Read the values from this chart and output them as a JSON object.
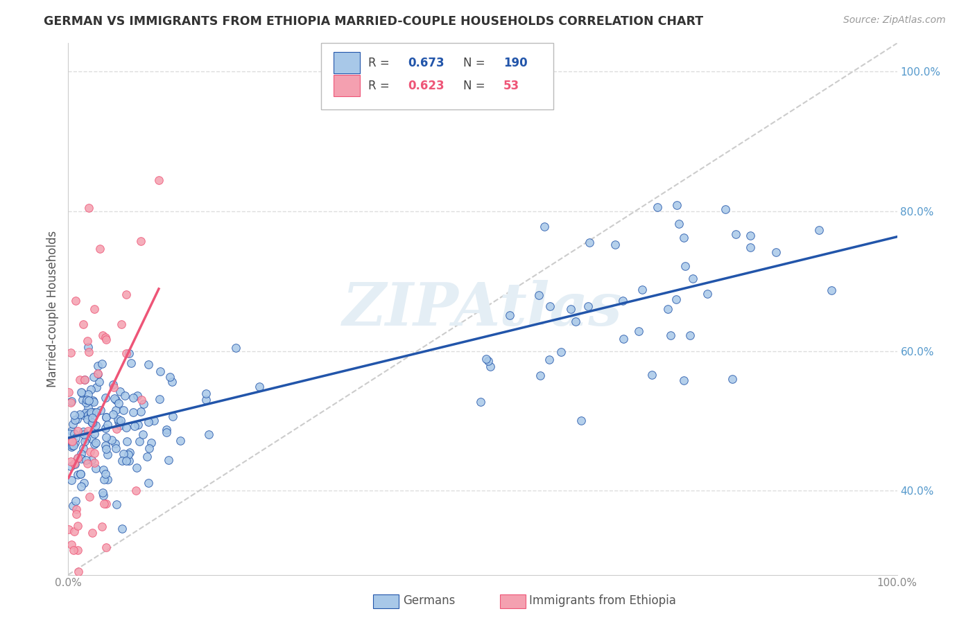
{
  "title": "GERMAN VS IMMIGRANTS FROM ETHIOPIA MARRIED-COUPLE HOUSEHOLDS CORRELATION CHART",
  "source": "Source: ZipAtlas.com",
  "ylabel": "Married-couple Households",
  "xlabel": "",
  "xlim": [
    0,
    1
  ],
  "ylim": [
    0.28,
    1.04
  ],
  "xticks": [
    0.0,
    0.2,
    0.4,
    0.6,
    0.8,
    1.0
  ],
  "yticks": [
    0.4,
    0.6,
    0.8,
    1.0
  ],
  "xticklabels": [
    "0.0%",
    "",
    "",
    "",
    "",
    "100.0%"
  ],
  "yticklabels": [
    "40.0%",
    "60.0%",
    "80.0%",
    "100.0%"
  ],
  "german_color": "#A8C8E8",
  "ethiopia_color": "#F4A0B0",
  "german_line_color": "#2255AA",
  "ethiopia_line_color": "#EE5577",
  "diagonal_color": "#CCCCCC",
  "german_R": 0.673,
  "german_N": 190,
  "ethiopia_R": 0.623,
  "ethiopia_N": 53,
  "watermark": "ZIPAtlas",
  "background_color": "#ffffff",
  "grid_color": "#dddddd",
  "ytick_color": "#5599CC",
  "xtick_color": "#888888"
}
